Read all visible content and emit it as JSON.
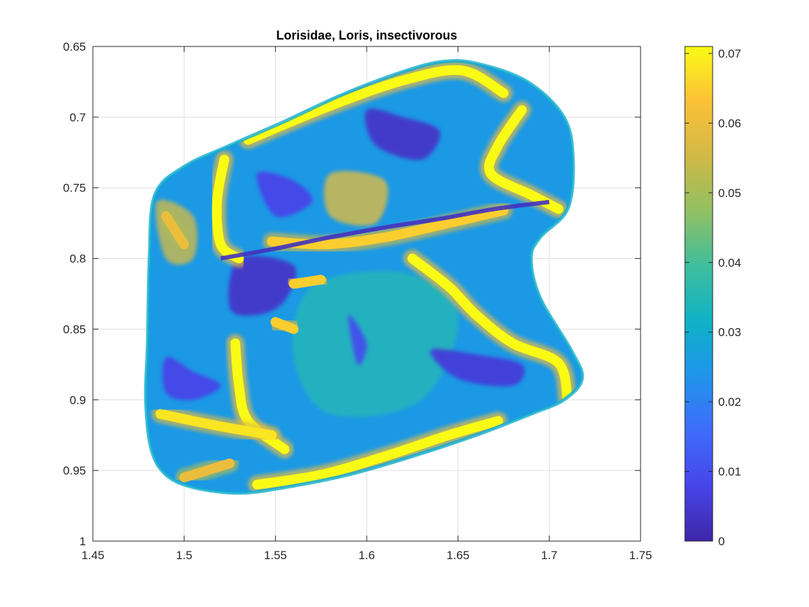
{
  "chart_data": {
    "type": "heatmap",
    "title": "Lorisidae, Loris, insectivorous",
    "xlabel": "",
    "ylabel": "",
    "xlim": [
      1.45,
      1.75
    ],
    "ylim": [
      0.65,
      1.0
    ],
    "y_reversed": true,
    "grid": true,
    "x_ticks": [
      "1.45",
      "1.5",
      "1.55",
      "1.6",
      "1.65",
      "1.7",
      "1.75"
    ],
    "y_ticks": [
      "0.65",
      "0.7",
      "0.75",
      "0.8",
      "0.85",
      "0.9",
      "0.95",
      "1"
    ],
    "colorbar": {
      "colormap": "parula",
      "range": [
        0,
        0.071
      ],
      "ticks": [
        "0",
        "0.01",
        "0.02",
        "0.03",
        "0.04",
        "0.05",
        "0.06",
        "0.07"
      ],
      "colors": [
        "#3e26a8",
        "#4744e8",
        "#3e6cfb",
        "#1f94eb",
        "#0fb2c7",
        "#3ebe9d",
        "#91c063",
        "#d0b946",
        "#fcc037",
        "#f9fb15"
      ]
    },
    "surface": {
      "outline": [
        [
          1.484,
          0.755
        ],
        [
          1.5,
          0.735
        ],
        [
          1.525,
          0.72
        ],
        [
          1.555,
          0.703
        ],
        [
          1.585,
          0.685
        ],
        [
          1.615,
          0.67
        ],
        [
          1.64,
          0.661
        ],
        [
          1.66,
          0.662
        ],
        [
          1.688,
          0.675
        ],
        [
          1.708,
          0.7
        ],
        [
          1.713,
          0.73
        ],
        [
          1.71,
          0.765
        ],
        [
          1.695,
          0.785
        ],
        [
          1.69,
          0.8
        ],
        [
          1.695,
          0.828
        ],
        [
          1.712,
          0.865
        ],
        [
          1.718,
          0.885
        ],
        [
          1.708,
          0.9
        ],
        [
          1.69,
          0.91
        ],
        [
          1.66,
          0.925
        ],
        [
          1.625,
          0.94
        ],
        [
          1.59,
          0.953
        ],
        [
          1.555,
          0.962
        ],
        [
          1.53,
          0.966
        ],
        [
          1.505,
          0.962
        ],
        [
          1.49,
          0.953
        ],
        [
          1.482,
          0.935
        ],
        [
          1.479,
          0.9
        ],
        [
          1.48,
          0.86
        ],
        [
          1.481,
          0.8
        ]
      ],
      "crack_line": [
        [
          1.52,
          0.8
        ],
        [
          1.55,
          0.793
        ],
        [
          1.58,
          0.785
        ],
        [
          1.61,
          0.778
        ],
        [
          1.64,
          0.772
        ],
        [
          1.67,
          0.765
        ],
        [
          1.7,
          0.76
        ]
      ],
      "high_bands": [
        {
          "points": [
            [
              1.535,
              0.716
            ],
            [
              1.58,
              0.692
            ],
            [
              1.62,
              0.674
            ],
            [
              1.652,
              0.667
            ],
            [
              1.675,
              0.683
            ]
          ],
          "value": 0.071
        },
        {
          "points": [
            [
              1.685,
              0.695
            ],
            [
              1.672,
              0.72
            ],
            [
              1.668,
              0.74
            ],
            [
              1.69,
              0.755
            ],
            [
              1.705,
              0.765
            ]
          ],
          "value": 0.071
        },
        {
          "points": [
            [
              1.522,
              0.73
            ],
            [
              1.518,
              0.76
            ],
            [
              1.52,
              0.79
            ],
            [
              1.53,
              0.8
            ]
          ],
          "value": 0.071
        },
        {
          "points": [
            [
              1.548,
              0.788
            ],
            [
              1.578,
              0.79
            ],
            [
              1.61,
              0.785
            ],
            [
              1.645,
              0.775
            ],
            [
              1.675,
              0.766
            ]
          ],
          "value": 0.065
        },
        {
          "points": [
            [
              1.625,
              0.8
            ],
            [
              1.645,
              0.82
            ],
            [
              1.66,
              0.84
            ],
            [
              1.68,
              0.86
            ],
            [
              1.705,
              0.874
            ],
            [
              1.71,
              0.9
            ]
          ],
          "value": 0.071
        },
        {
          "points": [
            [
              1.528,
              0.86
            ],
            [
              1.53,
              0.89
            ],
            [
              1.535,
              0.915
            ],
            [
              1.555,
              0.935
            ]
          ],
          "value": 0.071
        },
        {
          "points": [
            [
              1.487,
              0.91
            ],
            [
              1.505,
              0.915
            ],
            [
              1.525,
              0.92
            ],
            [
              1.548,
              0.925
            ]
          ],
          "value": 0.068
        },
        {
          "points": [
            [
              1.54,
              0.96
            ],
            [
              1.575,
              0.953
            ],
            [
              1.61,
              0.94
            ],
            [
              1.645,
              0.925
            ],
            [
              1.672,
              0.915
            ]
          ],
          "value": 0.071
        },
        {
          "points": [
            [
              1.49,
              0.77
            ],
            [
              1.5,
              0.79
            ]
          ],
          "value": 0.06
        },
        {
          "points": [
            [
              1.56,
              0.818
            ],
            [
              1.575,
              0.815
            ]
          ],
          "value": 0.065
        },
        {
          "points": [
            [
              1.55,
              0.845
            ],
            [
              1.56,
              0.85
            ]
          ],
          "value": 0.065
        },
        {
          "points": [
            [
              1.5,
              0.955
            ],
            [
              1.525,
              0.945
            ]
          ],
          "value": 0.06
        }
      ],
      "low_patches": [
        {
          "points": [
            [
              1.53,
              0.8
            ],
            [
              1.56,
              0.805
            ],
            [
              1.555,
              0.83
            ],
            [
              1.54,
              0.84
            ],
            [
              1.525,
              0.835
            ]
          ],
          "value": 0.004
        },
        {
          "points": [
            [
              1.6,
              0.695
            ],
            [
              1.62,
              0.7
            ],
            [
              1.64,
              0.71
            ],
            [
              1.63,
              0.73
            ],
            [
              1.605,
              0.72
            ]
          ],
          "value": 0.004
        },
        {
          "points": [
            [
              1.635,
              0.865
            ],
            [
              1.66,
              0.868
            ],
            [
              1.685,
              0.875
            ],
            [
              1.68,
              0.89
            ],
            [
              1.65,
              0.885
            ]
          ],
          "value": 0.006
        },
        {
          "points": [
            [
              1.49,
              0.87
            ],
            [
              1.505,
              0.88
            ],
            [
              1.52,
              0.89
            ],
            [
              1.505,
              0.9
            ],
            [
              1.49,
              0.895
            ]
          ],
          "value": 0.008
        },
        {
          "points": [
            [
              1.54,
              0.74
            ],
            [
              1.56,
              0.745
            ],
            [
              1.57,
              0.76
            ],
            [
              1.55,
              0.77
            ]
          ],
          "value": 0.008
        },
        {
          "points": [
            [
              1.59,
              0.84
            ],
            [
              1.6,
              0.86
            ],
            [
              1.595,
              0.875
            ]
          ],
          "value": 0.01
        }
      ]
    }
  }
}
